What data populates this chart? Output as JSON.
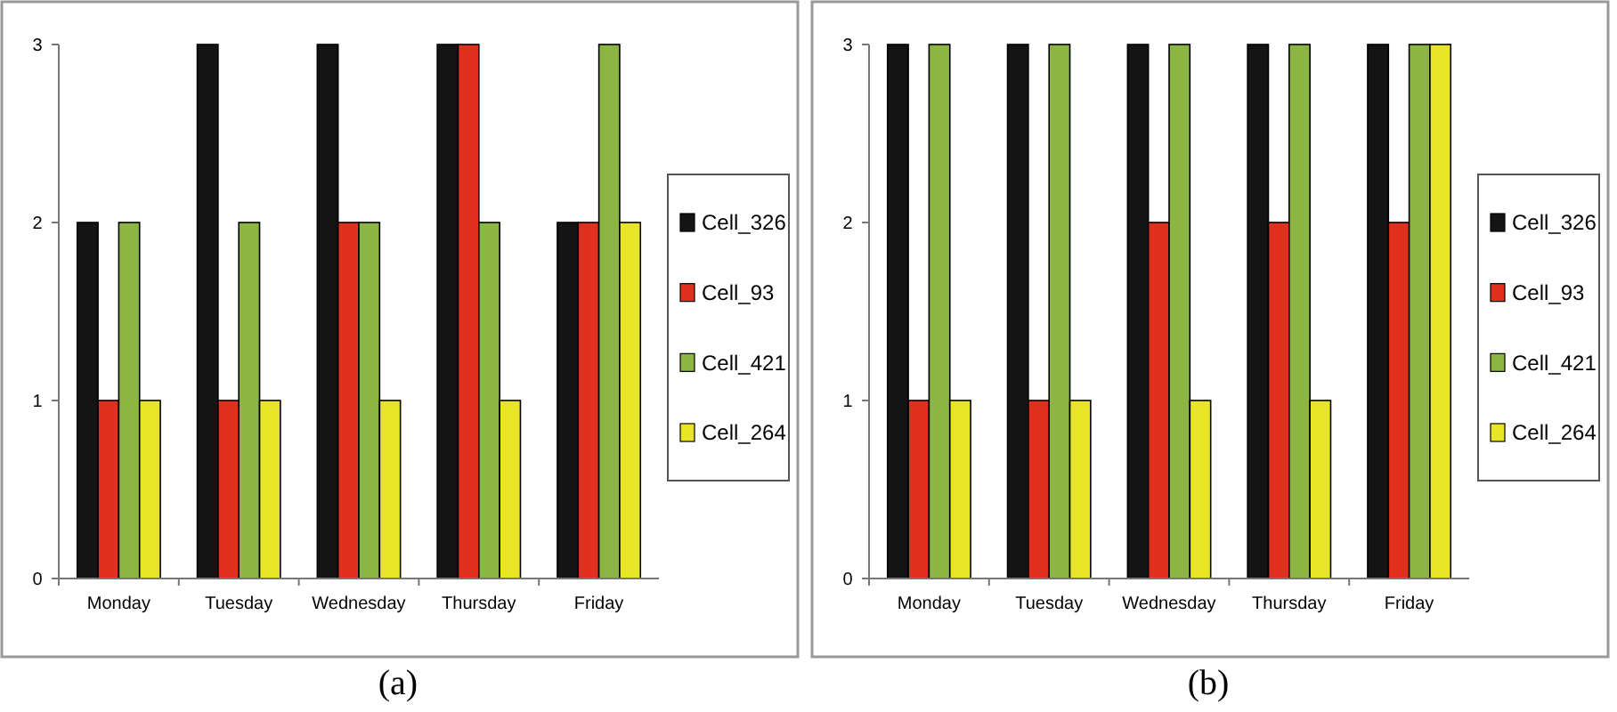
{
  "chart_data": [
    {
      "type": "bar",
      "title": "(a)",
      "categories": [
        "Monday",
        "Tuesday",
        "Wednesday",
        "Thursday",
        "Friday"
      ],
      "ylim": [
        0,
        3
      ],
      "yticks": [
        0,
        1,
        2,
        3
      ],
      "grid": false,
      "legend": "right",
      "series": [
        {
          "name": "Cell_326",
          "color": "#141414",
          "values": [
            2,
            3,
            3,
            3,
            2
          ]
        },
        {
          "name": "Cell_93",
          "color": "#e2301f",
          "values": [
            1,
            1,
            2,
            3,
            2
          ]
        },
        {
          "name": "Cell_421",
          "color": "#8db543",
          "values": [
            2,
            2,
            2,
            2,
            3
          ]
        },
        {
          "name": "Cell_264",
          "color": "#e8e426",
          "values": [
            1,
            1,
            1,
            1,
            2
          ]
        }
      ]
    },
    {
      "type": "bar",
      "title": "(b)",
      "categories": [
        "Monday",
        "Tuesday",
        "Wednesday",
        "Thursday",
        "Friday"
      ],
      "ylim": [
        0,
        3
      ],
      "yticks": [
        0,
        1,
        2,
        3
      ],
      "grid": false,
      "legend": "right",
      "series": [
        {
          "name": "Cell_326",
          "color": "#141414",
          "values": [
            3,
            3,
            3,
            3,
            3
          ]
        },
        {
          "name": "Cell_93",
          "color": "#e2301f",
          "values": [
            1,
            1,
            2,
            2,
            2
          ]
        },
        {
          "name": "Cell_421",
          "color": "#8db543",
          "values": [
            3,
            3,
            3,
            3,
            3
          ]
        },
        {
          "name": "Cell_264",
          "color": "#e8e426",
          "values": [
            1,
            1,
            1,
            1,
            3
          ]
        }
      ]
    }
  ]
}
